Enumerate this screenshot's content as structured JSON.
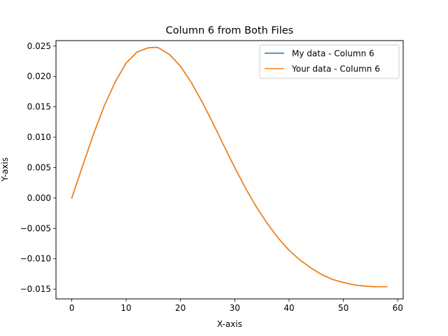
{
  "chart_data": {
    "type": "line",
    "title": "Column 6 from Both Files",
    "xlabel": "X-axis",
    "ylabel": "Y-axis",
    "xlim": [
      -2.9,
      61.0
    ],
    "ylim": [
      -0.0166,
      0.0259
    ],
    "xticks": [
      0,
      10,
      20,
      30,
      40,
      50,
      60
    ],
    "xtick_labels": [
      "0",
      "10",
      "20",
      "30",
      "40",
      "50",
      "60"
    ],
    "yticks": [
      -0.015,
      -0.01,
      -0.005,
      0.0,
      0.005,
      0.01,
      0.015,
      0.02,
      0.025
    ],
    "ytick_labels": [
      "−0.015",
      "−0.010",
      "−0.005",
      "0.000",
      "0.005",
      "0.010",
      "0.015",
      "0.020",
      "0.025"
    ],
    "grid": false,
    "legend_position": "top-right",
    "x": [
      0,
      2,
      4,
      6,
      8,
      10,
      12,
      14,
      15.5,
      16,
      18,
      20,
      22,
      24,
      26,
      28,
      30,
      32,
      34,
      36,
      38,
      40,
      42,
      44,
      46,
      48,
      50,
      52,
      54,
      56,
      58
    ],
    "series": [
      {
        "name": "My data - Column 6",
        "color": "#1f77b4",
        "values": [
          0.0,
          0.0053,
          0.0105,
          0.0152,
          0.0191,
          0.0222,
          0.024,
          0.0247,
          0.0248,
          0.0247,
          0.0236,
          0.0217,
          0.019,
          0.0158,
          0.0123,
          0.0086,
          0.005,
          0.0016,
          -0.0015,
          -0.0042,
          -0.0066,
          -0.0086,
          -0.0102,
          -0.0115,
          -0.0126,
          -0.0134,
          -0.0139,
          -0.0143,
          -0.0145,
          -0.0146,
          -0.0146
        ]
      },
      {
        "name": "Your data - Column 6",
        "color": "#ff7f0e",
        "values": [
          0.0,
          0.0053,
          0.0105,
          0.0152,
          0.0191,
          0.0222,
          0.024,
          0.0247,
          0.0248,
          0.0247,
          0.0236,
          0.0217,
          0.019,
          0.0158,
          0.0123,
          0.0086,
          0.005,
          0.0016,
          -0.0015,
          -0.0042,
          -0.0066,
          -0.0086,
          -0.0102,
          -0.0115,
          -0.0126,
          -0.0134,
          -0.0139,
          -0.0143,
          -0.0145,
          -0.0146,
          -0.0146
        ]
      }
    ]
  }
}
